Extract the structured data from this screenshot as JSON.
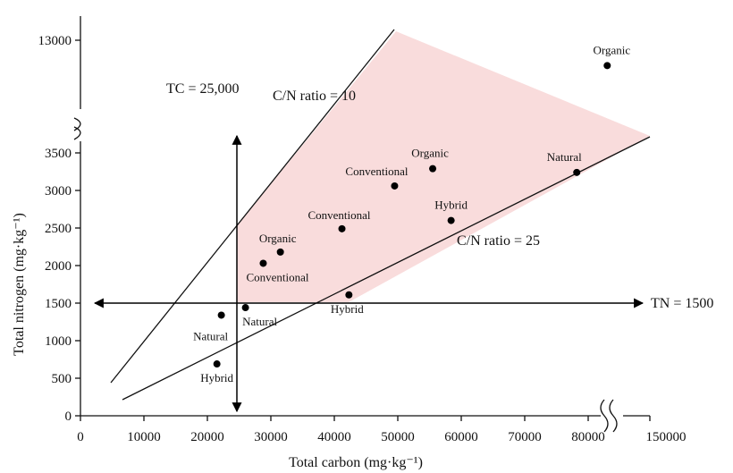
{
  "chart_data": {
    "type": "scatter",
    "xlabel": "Total carbon (mg·kg⁻¹)",
    "ylabel": "Total nitrogen (mg·kg⁻¹)",
    "x_ticks": [
      0,
      10000,
      20000,
      30000,
      40000,
      50000,
      60000,
      70000,
      80000
    ],
    "x_break_tick": 150000,
    "y_ticks": [
      0,
      500,
      1000,
      1500,
      2000,
      2500,
      3000,
      3500
    ],
    "y_break_tick": 13000,
    "axis_breaks": {
      "x": "between 85000 and 150000",
      "y": "between 3700 and 13000"
    },
    "region_fill": "#f9dcdc",
    "point_color": "#000000",
    "points": [
      {
        "label": "Natural",
        "x": 22200,
        "y": 1340
      },
      {
        "label": "Natural",
        "x": 26000,
        "y": 1440
      },
      {
        "label": "Hybrid",
        "x": 21500,
        "y": 690
      },
      {
        "label": "Conventional",
        "x": 28800,
        "y": 2030
      },
      {
        "label": "Organic",
        "x": 31500,
        "y": 2180
      },
      {
        "label": "Conventional",
        "x": 41200,
        "y": 2490
      },
      {
        "label": "Hybrid",
        "x": 42300,
        "y": 1610
      },
      {
        "label": "Conventional",
        "x": 49500,
        "y": 3060
      },
      {
        "label": "Organic",
        "x": 55500,
        "y": 3290
      },
      {
        "label": "Hybrid",
        "x": 58400,
        "y": 2600
      },
      {
        "label": "Natural",
        "x": 78200,
        "y": 3240
      },
      {
        "label": "Organic",
        "x": 83000,
        "y": 12650
      }
    ],
    "reference_lines": [
      {
        "label": "C/N ratio = 10",
        "slope": 0.1
      },
      {
        "label": "C/N ratio = 25",
        "slope": 0.04
      },
      {
        "label": "TC = 25,000",
        "axis": "x",
        "value": 25000
      },
      {
        "label": "TN = 1500",
        "axis": "y",
        "value": 1500
      }
    ]
  }
}
